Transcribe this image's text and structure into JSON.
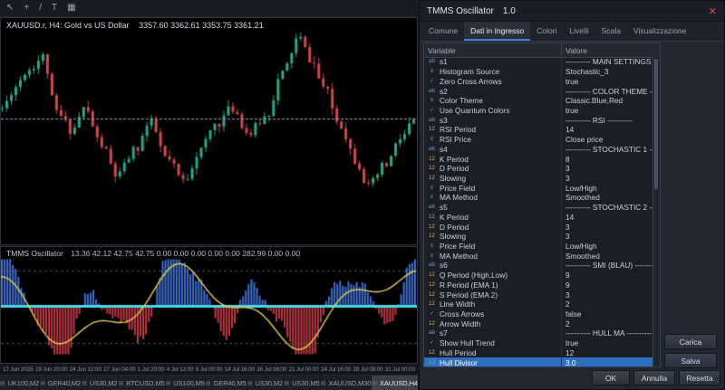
{
  "toolbar": {
    "icons": [
      {
        "name": "cursor",
        "glyph": "↖"
      },
      {
        "name": "crosshair",
        "glyph": "+"
      },
      {
        "name": "trendline",
        "glyph": "/"
      },
      {
        "name": "text",
        "glyph": "T"
      },
      {
        "name": "shapes",
        "glyph": "▦"
      }
    ]
  },
  "chart": {
    "symbol_text": "XAUUSD.r, H4: Gold vs US Dollar",
    "ohlc_text": "3357.60 3362.61 3353.75 3361.21",
    "colors": {
      "up": "#2aa889",
      "down": "#d4484e",
      "price_line": "#9aa1ad"
    },
    "render": {
      "candles": 92,
      "anchors": [
        [
          0,
          0.62
        ],
        [
          0.03,
          0.72
        ],
        [
          0.06,
          0.8
        ],
        [
          0.1,
          0.86
        ],
        [
          0.13,
          0.6
        ],
        [
          0.17,
          0.52
        ],
        [
          0.2,
          0.62
        ],
        [
          0.24,
          0.45
        ],
        [
          0.28,
          0.3
        ],
        [
          0.32,
          0.42
        ],
        [
          0.36,
          0.55
        ],
        [
          0.4,
          0.38
        ],
        [
          0.44,
          0.28
        ],
        [
          0.48,
          0.42
        ],
        [
          0.52,
          0.55
        ],
        [
          0.56,
          0.62
        ],
        [
          0.6,
          0.5
        ],
        [
          0.64,
          0.58
        ],
        [
          0.68,
          0.78
        ],
        [
          0.72,
          0.95
        ],
        [
          0.75,
          0.85
        ],
        [
          0.78,
          0.72
        ],
        [
          0.82,
          0.55
        ],
        [
          0.86,
          0.38
        ],
        [
          0.89,
          0.25
        ],
        [
          0.93,
          0.35
        ],
        [
          0.97,
          0.48
        ],
        [
          1,
          0.56
        ]
      ]
    }
  },
  "oscillator": {
    "title": "TMMS Oscillator",
    "values": "13.36 42.12 42.75 42.75 0.00 0.00 0.00 0.00 0.00 282.99 0.00 0.00",
    "colors": {
      "hist_pos": "#3f6fd0",
      "hist_neg": "#bf3a44",
      "signal": "#e6cf4e",
      "hull_band": "#49d8e8",
      "level_line": "#4a505c"
    },
    "render": {
      "bars": 150
    }
  },
  "time_axis": [
    "17 Jun 2025",
    "19 Jun 20:00",
    "24 Jun 12:00",
    "27 Jun 04:00",
    "1 Jul 20:00",
    "4 Jul 12:00",
    "9 Jul 00:00",
    "14 Jul 16:00",
    "16 Jul 08:00",
    "21 Jul 00:00",
    "24 Jul 16:00",
    "28 Jul 08:00",
    "31 Jul 00:00"
  ],
  "bottom_tabs": [
    {
      "label": "UK100,M2",
      "active": false
    },
    {
      "label": "GER40,M2",
      "active": false
    },
    {
      "label": "US30,M2",
      "active": false
    },
    {
      "label": "BTCUSD,M5",
      "active": false
    },
    {
      "label": "US100,M5",
      "active": false
    },
    {
      "label": "GER40,M5",
      "active": false
    },
    {
      "label": "US30,M2",
      "active": false
    },
    {
      "label": "US30,M5",
      "active": false
    },
    {
      "label": "XAUUSD,M30",
      "active": false
    },
    {
      "label": "XAUUSD,H4",
      "active": true
    }
  ],
  "dialog": {
    "title": "TMMS Oscillator",
    "version": "1.0",
    "close_glyph": "✕",
    "tabs": [
      {
        "label": "Comune",
        "active": false
      },
      {
        "label": "Dati in Ingresso",
        "active": true
      },
      {
        "label": "Colori",
        "active": false
      },
      {
        "label": "Livelli",
        "active": false
      },
      {
        "label": "Scala",
        "active": false
      },
      {
        "label": "Visualizzazione",
        "active": false
      }
    ],
    "table": {
      "headers": [
        "Variable",
        "Valore"
      ],
      "rows": [
        {
          "t": "str",
          "name": "s1",
          "value": "---------- MAIN SETTINGS ----------"
        },
        {
          "t": "enum",
          "name": "Histogram Source",
          "value": "Stochastic_3"
        },
        {
          "t": "bool",
          "name": "Zero Cross Arrows",
          "value": "true"
        },
        {
          "t": "str",
          "name": "s2",
          "value": "---------- COLOR THEME ----------"
        },
        {
          "t": "enum",
          "name": "Color Theme",
          "value": "Classic.Blue,Red"
        },
        {
          "t": "bool",
          "name": "Use Quantum Colors",
          "value": "true"
        },
        {
          "t": "str",
          "name": "s3",
          "value": "---------- RSI ----------"
        },
        {
          "t": "int",
          "name": "RSI Period",
          "value": "14"
        },
        {
          "t": "enum",
          "name": "RSI Price",
          "value": "Close price"
        },
        {
          "t": "str",
          "name": "s4",
          "value": "---------- STOCHASTIC 1 ----------"
        },
        {
          "t": "int",
          "name": "K Period",
          "value": "8"
        },
        {
          "t": "int",
          "name": "D Period",
          "value": "3"
        },
        {
          "t": "int",
          "name": "Slowing",
          "value": "3"
        },
        {
          "t": "enum",
          "name": "Price Field",
          "value": "Low/High"
        },
        {
          "t": "enum",
          "name": "MA Method",
          "value": "Smoothed"
        },
        {
          "t": "str",
          "name": "s5",
          "value": "---------- STOCHASTIC 2 ----------"
        },
        {
          "t": "int",
          "name": "K Period",
          "value": "14"
        },
        {
          "t": "int",
          "name": "D Period",
          "value": "3"
        },
        {
          "t": "int",
          "name": "Slowing",
          "value": "3"
        },
        {
          "t": "enum",
          "name": "Price Field",
          "value": "Low/High"
        },
        {
          "t": "enum",
          "name": "MA Method",
          "value": "Smoothed"
        },
        {
          "t": "str",
          "name": "s6",
          "value": "---------- SMI (BLAU) ----------"
        },
        {
          "t": "int",
          "name": "Q Period (High,Low)",
          "value": "9"
        },
        {
          "t": "int",
          "name": "R Period (EMA 1)",
          "value": "9"
        },
        {
          "t": "int",
          "name": "S Period (EMA 2)",
          "value": "3"
        },
        {
          "t": "int",
          "name": "Line Width",
          "value": "2"
        },
        {
          "t": "bool",
          "name": "Cross Arrows",
          "value": "false"
        },
        {
          "t": "int",
          "name": "Arrow Width",
          "value": "2"
        },
        {
          "t": "str",
          "name": "s7",
          "value": "---------- HULL MA ----------"
        },
        {
          "t": "bool",
          "name": "Show Hull Trend",
          "value": "true"
        },
        {
          "t": "int",
          "name": "Hull Period",
          "value": "12"
        },
        {
          "t": "double",
          "name": "Hull Divisor",
          "value": "3.0",
          "selected": true
        }
      ]
    },
    "icon_map": {
      "str": {
        "glyph": "ab",
        "color": "#6f9fd8"
      },
      "enum": {
        "glyph": "≡",
        "color": "#7fb069"
      },
      "int": {
        "glyph": "12",
        "color": "#d8b24a"
      },
      "double": {
        "glyph": "1.2",
        "color": "#5fc4c9"
      },
      "bool": {
        "glyph": "✓",
        "color": "#6fbf73"
      }
    },
    "buttons": {
      "carica": "Carica",
      "salva": "Salva",
      "ok": "OK",
      "annulla": "Annulla",
      "resetta": "Resetta"
    }
  }
}
